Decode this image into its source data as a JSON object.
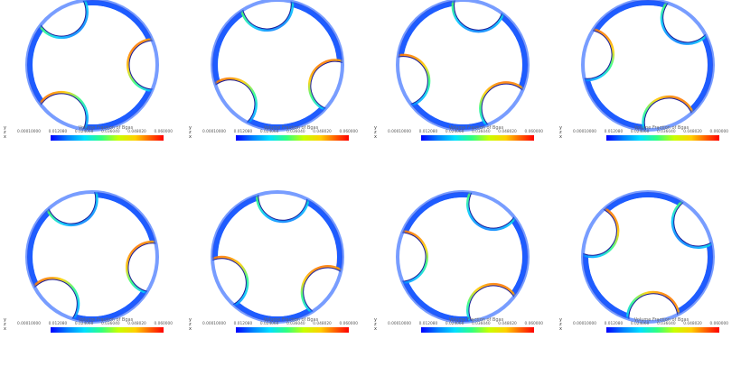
{
  "colorbar": {
    "title": "Volume Fraction of Bgas",
    "ticks": [
      "0.00010000",
      "0.012080",
      "0.024060",
      "0.036040",
      "0.048020",
      "0.060000"
    ]
  },
  "axes": {
    "y": "y",
    "z": "z",
    "x": "x"
  },
  "panels": [
    {
      "row": 1,
      "col": 1
    },
    {
      "row": 1,
      "col": 2
    },
    {
      "row": 1,
      "col": 3
    },
    {
      "row": 1,
      "col": 4
    },
    {
      "row": 2,
      "col": 1
    },
    {
      "row": 2,
      "col": 2
    },
    {
      "row": 2,
      "col": 3
    },
    {
      "row": 2,
      "col": 4
    }
  ]
}
